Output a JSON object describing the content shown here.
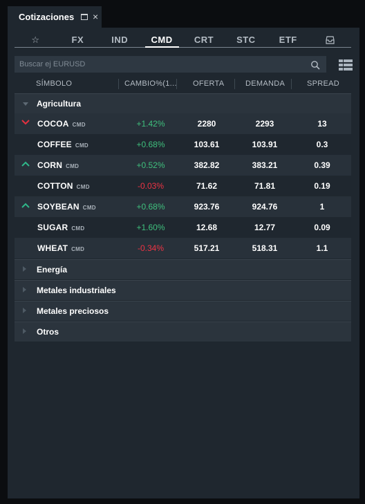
{
  "window": {
    "tab_title": "Cotizaciones",
    "maximize_icon": "maximize-icon",
    "close_label": "×"
  },
  "categories": [
    {
      "label": "☆",
      "icon": "star-icon",
      "active": false
    },
    {
      "label": "FX",
      "active": false
    },
    {
      "label": "IND",
      "active": false
    },
    {
      "label": "CMD",
      "active": true
    },
    {
      "label": "CRT",
      "active": false
    },
    {
      "label": "STC",
      "active": false
    },
    {
      "label": "ETF",
      "active": false
    },
    {
      "label": "",
      "icon": "inbox-icon",
      "active": false
    }
  ],
  "search": {
    "placeholder": "Buscar ej EURUSD",
    "value": ""
  },
  "columns": {
    "symbol": "SÍMBOLO",
    "change": "CAMBIO%(1...",
    "bid": "OFERTA",
    "ask": "DEMANDA",
    "spread": "SPREAD"
  },
  "groups": {
    "agricultura": "Agricultura",
    "energia": "Energía",
    "metales_industriales": "Metales industriales",
    "metales_preciosos": "Metales preciosos",
    "otros": "Otros"
  },
  "rows": [
    {
      "symbol": "COCOA",
      "tag": "CMD",
      "trend": "down",
      "change": "+1.42%",
      "change_sign": "pos",
      "bid": "2280",
      "ask": "2293",
      "spread": "13"
    },
    {
      "symbol": "COFFEE",
      "tag": "CMD",
      "trend": "none",
      "change": "+0.68%",
      "change_sign": "pos",
      "bid": "103.61",
      "ask": "103.91",
      "spread": "0.3"
    },
    {
      "symbol": "CORN",
      "tag": "CMD",
      "trend": "up",
      "change": "+0.52%",
      "change_sign": "pos",
      "bid": "382.82",
      "ask": "383.21",
      "spread": "0.39"
    },
    {
      "symbol": "COTTON",
      "tag": "CMD",
      "trend": "none",
      "change": "-0.03%",
      "change_sign": "neg",
      "bid": "71.62",
      "ask": "71.81",
      "spread": "0.19"
    },
    {
      "symbol": "SOYBEAN",
      "tag": "CMD",
      "trend": "up",
      "change": "+0.68%",
      "change_sign": "pos",
      "bid": "923.76",
      "ask": "924.76",
      "spread": "1"
    },
    {
      "symbol": "SUGAR",
      "tag": "CMD",
      "trend": "none",
      "change": "+1.60%",
      "change_sign": "pos",
      "bid": "12.68",
      "ask": "12.77",
      "spread": "0.09"
    },
    {
      "symbol": "WHEAT",
      "tag": "CMD",
      "trend": "none",
      "change": "-0.34%",
      "change_sign": "neg",
      "bid": "517.21",
      "ask": "518.31",
      "spread": "1.1"
    }
  ],
  "colors": {
    "positive": "#3fc07d",
    "negative": "#ee3344",
    "up_arrow": "#2fb88a",
    "down_arrow": "#e53040",
    "panel_bg": "#1f272f"
  }
}
